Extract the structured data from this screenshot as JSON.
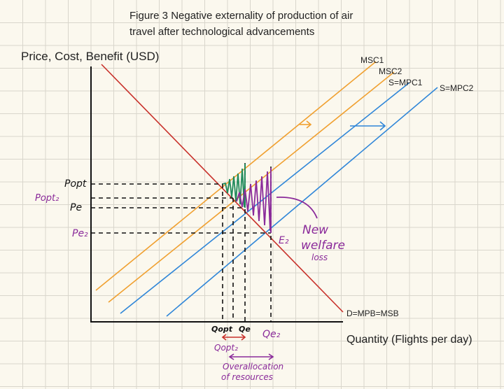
{
  "title_line1": "Figure 3 Negative externality of production of air",
  "title_line2": "travel after technological advancements",
  "y_axis_label": "Price, Cost, Benefit (USD)",
  "x_axis_label": "Quantity (Flights per day)",
  "curves": {
    "msc1": "MSC1",
    "msc2": "MSC2",
    "mpc1": "S=MPC1",
    "mpc2": "S=MPC2",
    "demand": "D=MPB=MSB"
  },
  "price_labels": {
    "popt": "Popt",
    "popt2": "Popt₂",
    "pe": "Pe",
    "pe2": "Pe₂"
  },
  "quantity_labels": {
    "qopt": "Qopt",
    "qe": "Qe",
    "qe2": "Qe₂",
    "qopt2": "Qopt₂"
  },
  "point_label_e2": "E₂",
  "annotations": {
    "welfare_1": "New",
    "welfare_2": "welfare",
    "welfare_3": "loss",
    "overalloc_1": "Overallocation",
    "overalloc_2": "of resources"
  },
  "colors": {
    "demand": "#c8302a",
    "msc": "#f0a030",
    "mpc": "#2f86d8",
    "old_welfare_loss": "#1f8a5a",
    "new_welfare_loss": "#8a2a9a",
    "grid": "#d9d6cc"
  }
}
